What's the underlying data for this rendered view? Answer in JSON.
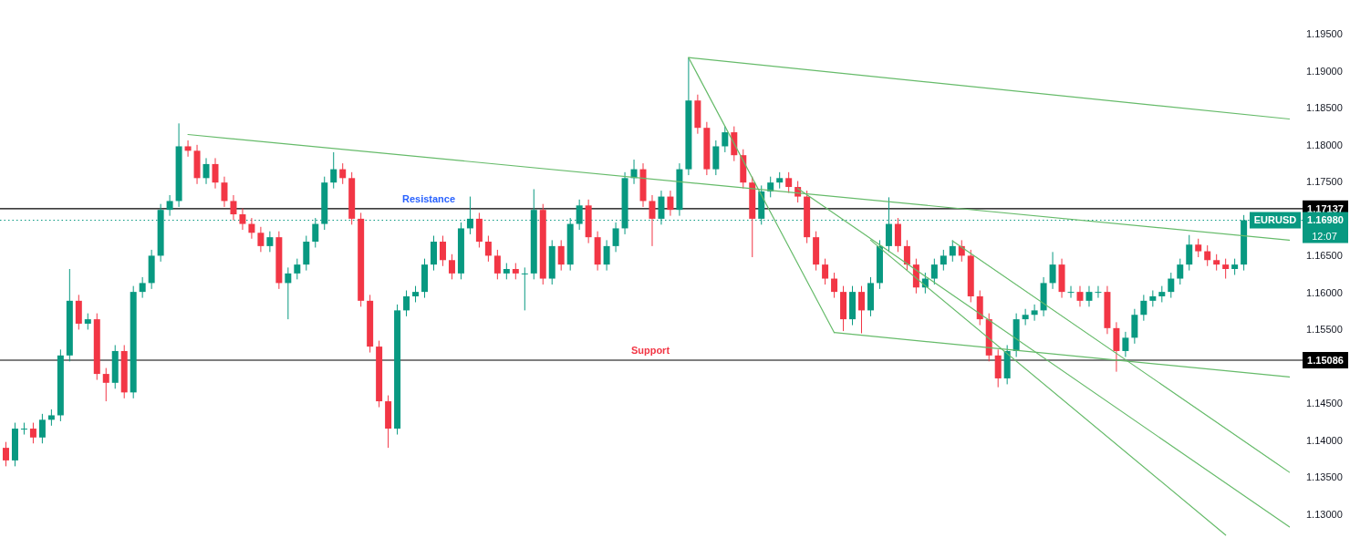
{
  "chart_data": {
    "type": "candlestick",
    "categories": [
      null,
      null,
      null,
      null,
      null,
      null,
      null,
      null,
      null,
      null,
      null,
      null,
      null,
      null,
      null,
      null,
      null,
      null,
      null,
      null,
      null,
      null,
      null,
      null,
      null,
      null,
      null,
      null,
      null,
      null,
      null,
      null,
      null,
      null,
      null,
      null,
      null,
      null,
      null,
      null,
      null,
      null,
      null,
      null,
      null,
      null,
      null,
      null,
      null,
      null,
      null,
      null,
      null,
      null,
      null,
      null,
      null,
      null,
      null,
      null,
      null,
      null,
      null,
      null,
      null,
      null,
      null,
      null,
      null,
      null,
      null,
      null,
      null,
      null,
      null,
      null,
      null,
      null,
      null,
      null,
      null,
      null,
      null,
      null,
      null,
      null,
      null,
      null,
      null,
      null,
      null,
      null,
      null,
      null,
      null,
      null,
      null,
      null,
      null,
      null,
      null,
      null,
      null,
      null,
      null,
      null,
      null,
      null,
      null,
      null,
      null,
      null,
      null,
      null,
      null,
      null,
      null,
      null,
      null,
      null,
      null,
      null,
      null,
      null,
      null,
      null,
      null,
      null,
      null,
      null,
      null,
      null,
      null,
      null,
      null,
      null,
      null,
      null,
      null,
      null,
      null,
      null
    ],
    "ohlc": [
      [
        1.139,
        1.1398,
        1.1365,
        1.1373
      ],
      [
        1.1373,
        1.1424,
        1.1365,
        1.1416
      ],
      [
        1.1416,
        1.1424,
        1.1408,
        1.1416
      ],
      [
        1.1416,
        1.1424,
        1.1396,
        1.1404
      ],
      [
        1.1404,
        1.1436,
        1.1396,
        1.1428
      ],
      [
        1.1428,
        1.1442,
        1.142,
        1.1434
      ],
      [
        1.1434,
        1.1523,
        1.1426,
        1.1515
      ],
      [
        1.1515,
        1.1632,
        1.1507,
        1.1589
      ],
      [
        1.1589,
        1.1597,
        1.155,
        1.1558
      ],
      [
        1.1558,
        1.1572,
        1.155,
        1.1564
      ],
      [
        1.1564,
        1.1572,
        1.1482,
        1.149
      ],
      [
        1.149,
        1.1498,
        1.1453,
        1.1478
      ],
      [
        1.1478,
        1.1529,
        1.147,
        1.1521
      ],
      [
        1.1521,
        1.1529,
        1.1457,
        1.1465
      ],
      [
        1.1465,
        1.1609,
        1.1457,
        1.1601
      ],
      [
        1.1601,
        1.1621,
        1.1593,
        1.1613
      ],
      [
        1.1613,
        1.1658,
        1.1605,
        1.165
      ],
      [
        1.165,
        1.172,
        1.1642,
        1.1712
      ],
      [
        1.1712,
        1.1732,
        1.1704,
        1.1724
      ],
      [
        1.1724,
        1.1829,
        1.1716,
        1.1798
      ],
      [
        1.1798,
        1.1806,
        1.1784,
        1.1792
      ],
      [
        1.1792,
        1.18,
        1.1747,
        1.1755
      ],
      [
        1.1755,
        1.1782,
        1.1747,
        1.1774
      ],
      [
        1.1774,
        1.1782,
        1.1741,
        1.1749
      ],
      [
        1.1749,
        1.1757,
        1.1716,
        1.1724
      ],
      [
        1.1724,
        1.1732,
        1.1698,
        1.1706
      ],
      [
        1.1706,
        1.1714,
        1.1685,
        1.1693
      ],
      [
        1.1693,
        1.1701,
        1.1673,
        1.1681
      ],
      [
        1.1681,
        1.1689,
        1.1655,
        1.1663
      ],
      [
        1.1663,
        1.1683,
        1.1655,
        1.1675
      ],
      [
        1.1675,
        1.1683,
        1.1605,
        1.1613
      ],
      [
        1.1613,
        1.1634,
        1.1564,
        1.1626
      ],
      [
        1.1626,
        1.1646,
        1.1618,
        1.1638
      ],
      [
        1.1638,
        1.1677,
        1.163,
        1.1669
      ],
      [
        1.1669,
        1.1701,
        1.1661,
        1.1693
      ],
      [
        1.1693,
        1.1757,
        1.1685,
        1.1749
      ],
      [
        1.1749,
        1.179,
        1.1741,
        1.1767
      ],
      [
        1.1767,
        1.1775,
        1.1747,
        1.1755
      ],
      [
        1.1755,
        1.1763,
        1.1692,
        1.17
      ],
      [
        1.17,
        1.1708,
        1.1581,
        1.1589
      ],
      [
        1.1589,
        1.1597,
        1.1519,
        1.1527
      ],
      [
        1.1527,
        1.1535,
        1.1445,
        1.1453
      ],
      [
        1.1453,
        1.1461,
        1.139,
        1.1416
      ],
      [
        1.1416,
        1.1584,
        1.1408,
        1.1576
      ],
      [
        1.1576,
        1.1603,
        1.1568,
        1.1595
      ],
      [
        1.1595,
        1.1609,
        1.1587,
        1.1601
      ],
      [
        1.1601,
        1.1646,
        1.1593,
        1.1638
      ],
      [
        1.1638,
        1.1677,
        1.163,
        1.1669
      ],
      [
        1.1669,
        1.1677,
        1.1636,
        1.1644
      ],
      [
        1.1644,
        1.1652,
        1.1618,
        1.1626
      ],
      [
        1.1626,
        1.1695,
        1.1618,
        1.1687
      ],
      [
        1.1687,
        1.173,
        1.1679,
        1.17
      ],
      [
        1.17,
        1.1708,
        1.1661,
        1.1669
      ],
      [
        1.1669,
        1.1677,
        1.1642,
        1.165
      ],
      [
        1.165,
        1.1658,
        1.1618,
        1.1626
      ],
      [
        1.1626,
        1.164,
        1.1618,
        1.1632
      ],
      [
        1.1632,
        1.164,
        1.1618,
        1.1626
      ],
      [
        1.1626,
        1.1634,
        1.1576,
        1.1626
      ],
      [
        1.1626,
        1.174,
        1.1618,
        1.1712
      ],
      [
        1.1712,
        1.172,
        1.1611,
        1.1619
      ],
      [
        1.1619,
        1.1671,
        1.1611,
        1.1663
      ],
      [
        1.1663,
        1.1671,
        1.163,
        1.1638
      ],
      [
        1.1638,
        1.1701,
        1.163,
        1.1693
      ],
      [
        1.1693,
        1.1726,
        1.1685,
        1.1718
      ],
      [
        1.1718,
        1.1726,
        1.1667,
        1.1675
      ],
      [
        1.1675,
        1.1683,
        1.163,
        1.1638
      ],
      [
        1.1638,
        1.1671,
        1.163,
        1.1663
      ],
      [
        1.1663,
        1.1695,
        1.1655,
        1.1687
      ],
      [
        1.1687,
        1.1763,
        1.1679,
        1.1755
      ],
      [
        1.1755,
        1.178,
        1.1747,
        1.1767
      ],
      [
        1.1767,
        1.1775,
        1.1716,
        1.1724
      ],
      [
        1.1724,
        1.1732,
        1.1663,
        1.17
      ],
      [
        1.17,
        1.1738,
        1.1692,
        1.173
      ],
      [
        1.173,
        1.1738,
        1.1704,
        1.1712
      ],
      [
        1.1712,
        1.1775,
        1.1704,
        1.1767
      ],
      [
        1.1767,
        1.1918,
        1.1759,
        1.186
      ],
      [
        1.186,
        1.1868,
        1.1815,
        1.1823
      ],
      [
        1.1823,
        1.1831,
        1.1759,
        1.1767
      ],
      [
        1.1767,
        1.1806,
        1.1759,
        1.1798
      ],
      [
        1.1798,
        1.1825,
        1.179,
        1.1817
      ],
      [
        1.1817,
        1.1825,
        1.1778,
        1.1786
      ],
      [
        1.1786,
        1.1794,
        1.1741,
        1.1749
      ],
      [
        1.1749,
        1.1757,
        1.1648,
        1.17
      ],
      [
        1.17,
        1.1745,
        1.1692,
        1.1737
      ],
      [
        1.1737,
        1.1757,
        1.1729,
        1.1749
      ],
      [
        1.1749,
        1.1763,
        1.1741,
        1.1755
      ],
      [
        1.1755,
        1.1763,
        1.1735,
        1.1743
      ],
      [
        1.1743,
        1.1751,
        1.1722,
        1.173
      ],
      [
        1.173,
        1.1738,
        1.1667,
        1.1675
      ],
      [
        1.1675,
        1.1683,
        1.163,
        1.1638
      ],
      [
        1.1638,
        1.1646,
        1.1611,
        1.1619
      ],
      [
        1.1619,
        1.1627,
        1.1593,
        1.1601
      ],
      [
        1.1601,
        1.1609,
        1.1548,
        1.1564
      ],
      [
        1.1564,
        1.1609,
        1.1556,
        1.1601
      ],
      [
        1.1601,
        1.1609,
        1.1545,
        1.1576
      ],
      [
        1.1576,
        1.1621,
        1.1568,
        1.1613
      ],
      [
        1.1613,
        1.1671,
        1.1605,
        1.1663
      ],
      [
        1.1663,
        1.1729,
        1.1655,
        1.1693
      ],
      [
        1.1693,
        1.1701,
        1.1655,
        1.1663
      ],
      [
        1.1663,
        1.1671,
        1.163,
        1.1638
      ],
      [
        1.1638,
        1.1646,
        1.1599,
        1.1607
      ],
      [
        1.1607,
        1.1627,
        1.1599,
        1.1619
      ],
      [
        1.1619,
        1.1646,
        1.1611,
        1.1638
      ],
      [
        1.1638,
        1.1658,
        1.163,
        1.165
      ],
      [
        1.165,
        1.1671,
        1.1642,
        1.1663
      ],
      [
        1.1663,
        1.1671,
        1.1642,
        1.165
      ],
      [
        1.165,
        1.1658,
        1.1587,
        1.1595
      ],
      [
        1.1595,
        1.1603,
        1.1556,
        1.1564
      ],
      [
        1.1564,
        1.1572,
        1.1507,
        1.1515
      ],
      [
        1.1515,
        1.1523,
        1.1472,
        1.1484
      ],
      [
        1.1484,
        1.1529,
        1.1476,
        1.1521
      ],
      [
        1.1521,
        1.1572,
        1.1513,
        1.1564
      ],
      [
        1.1564,
        1.1578,
        1.1556,
        1.157
      ],
      [
        1.157,
        1.1584,
        1.1562,
        1.1576
      ],
      [
        1.1576,
        1.1621,
        1.1568,
        1.1613
      ],
      [
        1.1613,
        1.1655,
        1.1605,
        1.1638
      ],
      [
        1.1638,
        1.1646,
        1.1593,
        1.1601
      ],
      [
        1.1601,
        1.1609,
        1.1593,
        1.1601
      ],
      [
        1.1601,
        1.1609,
        1.1581,
        1.1589
      ],
      [
        1.1589,
        1.1609,
        1.1581,
        1.1601
      ],
      [
        1.1601,
        1.1609,
        1.1593,
        1.1601
      ],
      [
        1.1601,
        1.1609,
        1.1544,
        1.1552
      ],
      [
        1.1552,
        1.156,
        1.1493,
        1.1521
      ],
      [
        1.1521,
        1.1547,
        1.1513,
        1.1539
      ],
      [
        1.1539,
        1.1578,
        1.1531,
        1.157
      ],
      [
        1.157,
        1.1597,
        1.1562,
        1.1589
      ],
      [
        1.1589,
        1.1603,
        1.1581,
        1.1595
      ],
      [
        1.1595,
        1.1609,
        1.1587,
        1.1601
      ],
      [
        1.1601,
        1.1627,
        1.1593,
        1.1619
      ],
      [
        1.1619,
        1.1646,
        1.1611,
        1.1638
      ],
      [
        1.1638,
        1.1678,
        1.163,
        1.1665
      ],
      [
        1.1665,
        1.1673,
        1.1648,
        1.1656
      ],
      [
        1.1656,
        1.1664,
        1.1636,
        1.1644
      ],
      [
        1.1644,
        1.1652,
        1.163,
        1.1638
      ],
      [
        1.1638,
        1.1646,
        1.1619,
        1.1632
      ],
      [
        1.1632,
        1.1646,
        1.1624,
        1.1638
      ],
      [
        1.1638,
        1.1705,
        1.163,
        1.1698
      ],
      null,
      null,
      null,
      null,
      null
    ],
    "series": [
      {
        "type": "line",
        "color": "#66bb6a",
        "values": [
          null,
          null,
          null,
          null,
          null,
          null,
          null,
          null,
          null,
          null,
          null,
          null,
          null,
          null,
          null,
          null,
          null,
          null,
          null,
          null,
          1.1814,
          null,
          null,
          null,
          null,
          null,
          null,
          null,
          null,
          null,
          null,
          null,
          null,
          null,
          null,
          null,
          null,
          null,
          null,
          null,
          null,
          null,
          null,
          null,
          null,
          null,
          null,
          null,
          null,
          null,
          null,
          null,
          null,
          null,
          null,
          null,
          null,
          null,
          null,
          null,
          null,
          null,
          null,
          null,
          null,
          null,
          null,
          null,
          null,
          null,
          null,
          null,
          null,
          null,
          null,
          null,
          null,
          null,
          null,
          null,
          null,
          null,
          null,
          null,
          null,
          null,
          null,
          null,
          null,
          null,
          null,
          null,
          null,
          null,
          null,
          null,
          null,
          null,
          null,
          null,
          null,
          null,
          null,
          null,
          null,
          null,
          null,
          null,
          null,
          null,
          null,
          null,
          null,
          null,
          null,
          null,
          null,
          null,
          null,
          null,
          null,
          null,
          null,
          null,
          null,
          null,
          null,
          null,
          null,
          null,
          null,
          null,
          null,
          null,
          null,
          null,
          null,
          null,
          null,
          null,
          null,
          1.1671
        ]
      },
      {
        "type": "line",
        "color": "#66bb6a",
        "values": [
          null,
          null,
          null,
          null,
          null,
          null,
          null,
          null,
          null,
          null,
          null,
          null,
          null,
          null,
          null,
          null,
          null,
          null,
          null,
          null,
          null,
          null,
          null,
          null,
          null,
          null,
          null,
          null,
          null,
          null,
          null,
          null,
          null,
          null,
          null,
          null,
          null,
          null,
          null,
          null,
          null,
          null,
          null,
          null,
          null,
          null,
          null,
          null,
          null,
          null,
          null,
          null,
          null,
          null,
          null,
          null,
          null,
          null,
          null,
          null,
          null,
          null,
          null,
          null,
          null,
          null,
          null,
          null,
          null,
          null,
          null,
          null,
          null,
          null,
          null,
          1.1918,
          null,
          null,
          null,
          null,
          null,
          null,
          null,
          null,
          null,
          null,
          null,
          null,
          null,
          null,
          null,
          null,
          null,
          null,
          null,
          null,
          null,
          null,
          null,
          null,
          null,
          null,
          null,
          null,
          null,
          null,
          null,
          null,
          null,
          null,
          null,
          null,
          null,
          null,
          null,
          null,
          null,
          null,
          null,
          null,
          null,
          null,
          null,
          null,
          null,
          null,
          null,
          null,
          null,
          null,
          null,
          null,
          null,
          null,
          null,
          null,
          null,
          null,
          null,
          null,
          null,
          1.1835
        ]
      },
      {
        "type": "line",
        "color": "#66bb6a",
        "values": [
          null,
          null,
          null,
          null,
          null,
          null,
          null,
          null,
          null,
          null,
          null,
          null,
          null,
          null,
          null,
          null,
          null,
          null,
          null,
          null,
          null,
          null,
          null,
          null,
          null,
          null,
          null,
          null,
          null,
          null,
          null,
          null,
          null,
          null,
          null,
          null,
          null,
          null,
          null,
          null,
          null,
          null,
          null,
          null,
          null,
          null,
          null,
          null,
          null,
          null,
          null,
          null,
          null,
          null,
          null,
          null,
          null,
          null,
          null,
          null,
          null,
          null,
          null,
          null,
          null,
          null,
          null,
          null,
          null,
          null,
          null,
          null,
          null,
          null,
          null,
          1.1918,
          null,
          null,
          null,
          null,
          null,
          null,
          null,
          null,
          null,
          null,
          null,
          null,
          null,
          null,
          null,
          1.1546,
          null,
          null,
          null,
          null,
          null,
          null,
          null,
          null,
          null,
          null,
          null,
          null,
          null,
          null,
          null,
          null,
          null,
          null,
          null,
          null,
          null,
          null,
          null,
          null,
          null,
          null,
          null,
          null,
          null,
          null,
          null,
          null,
          null,
          null,
          null,
          null,
          null,
          null,
          null,
          null,
          null,
          null,
          null,
          null,
          null,
          null,
          null,
          null,
          null,
          null
        ]
      },
      {
        "type": "line",
        "color": "#66bb6a",
        "values": [
          null,
          null,
          null,
          null,
          null,
          null,
          null,
          null,
          null,
          null,
          null,
          null,
          null,
          null,
          null,
          null,
          null,
          null,
          null,
          null,
          null,
          null,
          null,
          null,
          null,
          null,
          null,
          null,
          null,
          null,
          null,
          null,
          null,
          null,
          null,
          null,
          null,
          null,
          null,
          null,
          null,
          null,
          null,
          null,
          null,
          null,
          null,
          null,
          null,
          null,
          null,
          null,
          null,
          null,
          null,
          null,
          null,
          null,
          null,
          null,
          null,
          null,
          null,
          null,
          null,
          null,
          null,
          null,
          null,
          null,
          null,
          null,
          null,
          null,
          null,
          null,
          null,
          null,
          null,
          null,
          null,
          null,
          null,
          null,
          null,
          null,
          null,
          null,
          null,
          null,
          null,
          1.1546,
          null,
          null,
          null,
          null,
          null,
          null,
          null,
          null,
          null,
          null,
          null,
          null,
          null,
          null,
          null,
          null,
          null,
          null,
          null,
          null,
          null,
          null,
          null,
          null,
          null,
          null,
          null,
          null,
          null,
          null,
          null,
          null,
          null,
          null,
          null,
          null,
          null,
          null,
          null,
          null,
          null,
          null,
          null,
          null,
          null,
          null,
          null,
          null,
          null,
          1.1486
        ]
      },
      {
        "type": "line",
        "color": "#66bb6a",
        "values": [
          null,
          null,
          null,
          null,
          null,
          null,
          null,
          null,
          null,
          null,
          null,
          null,
          null,
          null,
          null,
          null,
          null,
          null,
          null,
          null,
          null,
          null,
          null,
          null,
          null,
          null,
          null,
          null,
          null,
          null,
          null,
          null,
          null,
          null,
          null,
          null,
          null,
          null,
          null,
          null,
          null,
          null,
          null,
          null,
          null,
          null,
          null,
          null,
          null,
          null,
          null,
          null,
          null,
          null,
          null,
          null,
          null,
          null,
          null,
          null,
          null,
          null,
          null,
          null,
          null,
          null,
          null,
          null,
          null,
          null,
          null,
          null,
          null,
          null,
          null,
          null,
          null,
          null,
          null,
          null,
          null,
          null,
          null,
          null,
          null,
          null,
          null,
          null,
          null,
          null,
          null,
          null,
          null,
          null,
          null,
          null,
          null,
          null,
          null,
          null,
          null,
          null,
          null,
          null,
          1.167,
          null,
          null,
          null,
          null,
          null,
          null,
          null,
          null,
          null,
          null,
          null,
          null,
          null,
          null,
          null,
          null,
          null,
          null,
          null,
          null,
          null,
          null,
          null,
          null,
          null,
          null,
          null,
          null,
          null,
          null,
          null,
          null,
          null,
          null,
          null,
          null,
          1.1357
        ]
      },
      {
        "type": "line",
        "color": "#66bb6a",
        "values": [
          null,
          null,
          null,
          null,
          null,
          null,
          null,
          null,
          null,
          null,
          null,
          null,
          null,
          null,
          null,
          null,
          null,
          null,
          null,
          null,
          null,
          null,
          null,
          null,
          null,
          null,
          null,
          null,
          null,
          null,
          null,
          null,
          null,
          null,
          null,
          null,
          null,
          null,
          null,
          null,
          null,
          null,
          null,
          null,
          null,
          null,
          null,
          null,
          null,
          null,
          null,
          null,
          null,
          null,
          null,
          null,
          null,
          null,
          null,
          null,
          null,
          null,
          null,
          null,
          null,
          null,
          null,
          null,
          null,
          null,
          null,
          null,
          null,
          null,
          null,
          null,
          null,
          null,
          null,
          null,
          null,
          null,
          null,
          null,
          null,
          null,
          null,
          1.1741,
          null,
          null,
          null,
          null,
          null,
          null,
          null,
          null,
          null,
          null,
          null,
          null,
          null,
          null,
          null,
          null,
          null,
          null,
          null,
          null,
          null,
          null,
          null,
          null,
          null,
          null,
          null,
          null,
          null,
          null,
          null,
          null,
          null,
          null,
          null,
          null,
          null,
          null,
          null,
          null,
          null,
          null,
          null,
          null,
          null,
          null,
          null,
          null,
          null,
          null,
          null,
          null,
          null,
          1.1283
        ]
      },
      {
        "type": "line",
        "color": "#66bb6a",
        "values": [
          null,
          null,
          null,
          null,
          null,
          null,
          null,
          null,
          null,
          null,
          null,
          null,
          null,
          null,
          null,
          null,
          null,
          null,
          null,
          null,
          null,
          null,
          null,
          null,
          null,
          null,
          null,
          null,
          null,
          null,
          null,
          null,
          null,
          null,
          null,
          null,
          null,
          null,
          null,
          null,
          null,
          null,
          null,
          null,
          null,
          null,
          null,
          null,
          null,
          null,
          null,
          null,
          null,
          null,
          null,
          null,
          null,
          null,
          null,
          null,
          null,
          null,
          null,
          null,
          null,
          null,
          null,
          null,
          null,
          null,
          null,
          null,
          null,
          null,
          null,
          null,
          null,
          null,
          null,
          null,
          null,
          null,
          null,
          null,
          null,
          null,
          null,
          null,
          null,
          null,
          null,
          null,
          null,
          null,
          null,
          1.1671,
          null,
          null,
          null,
          null,
          null,
          null,
          null,
          null,
          null,
          null,
          null,
          null,
          null,
          null,
          null,
          null,
          null,
          null,
          null,
          null,
          null,
          null,
          null,
          null,
          null,
          null,
          null,
          null,
          null,
          null,
          null,
          null,
          null,
          null,
          null,
          null,
          null,
          null,
          1.1272,
          null,
          null,
          null,
          null,
          null,
          null,
          null
        ]
      }
    ],
    "ylim": [
      1.1268,
      1.1996
    ],
    "yticks": [
      {
        "value": 1.13,
        "label": "1.13000"
      },
      {
        "value": 1.135,
        "label": "1.13500"
      },
      {
        "value": 1.14,
        "label": "1.14000"
      },
      {
        "value": 1.145,
        "label": "1.14500"
      },
      {
        "value": 1.155,
        "label": "1.15500"
      },
      {
        "value": 1.16,
        "label": "1.16000"
      },
      {
        "value": 1.165,
        "label": "1.16500"
      },
      {
        "value": 1.175,
        "label": "1.17500"
      },
      {
        "value": 1.18,
        "label": "1.18000"
      },
      {
        "value": 1.185,
        "label": "1.18500"
      },
      {
        "value": 1.19,
        "label": "1.19000"
      },
      {
        "value": 1.195,
        "label": "1.19500"
      }
    ],
    "tick_labels": "y",
    "ref_lines": [
      {
        "axis": "y",
        "value": 1.17137,
        "label": "1.17137",
        "color": "#000000",
        "line_style": "solid"
      },
      {
        "axis": "y",
        "value": 1.15086,
        "label": "1.15086",
        "color": "#000000",
        "line_style": "solid"
      },
      {
        "axis": "y",
        "value": 1.1698,
        "label": "1.16980",
        "color": "#089981",
        "line_style": "dotted"
      }
    ],
    "annotations": [
      {
        "text": "Resistance",
        "y": 1.17137
      },
      {
        "text": "Support",
        "y": 1.15086
      },
      {
        "text": "EURUSD",
        "y": 1.1698
      },
      "12:07"
    ]
  }
}
